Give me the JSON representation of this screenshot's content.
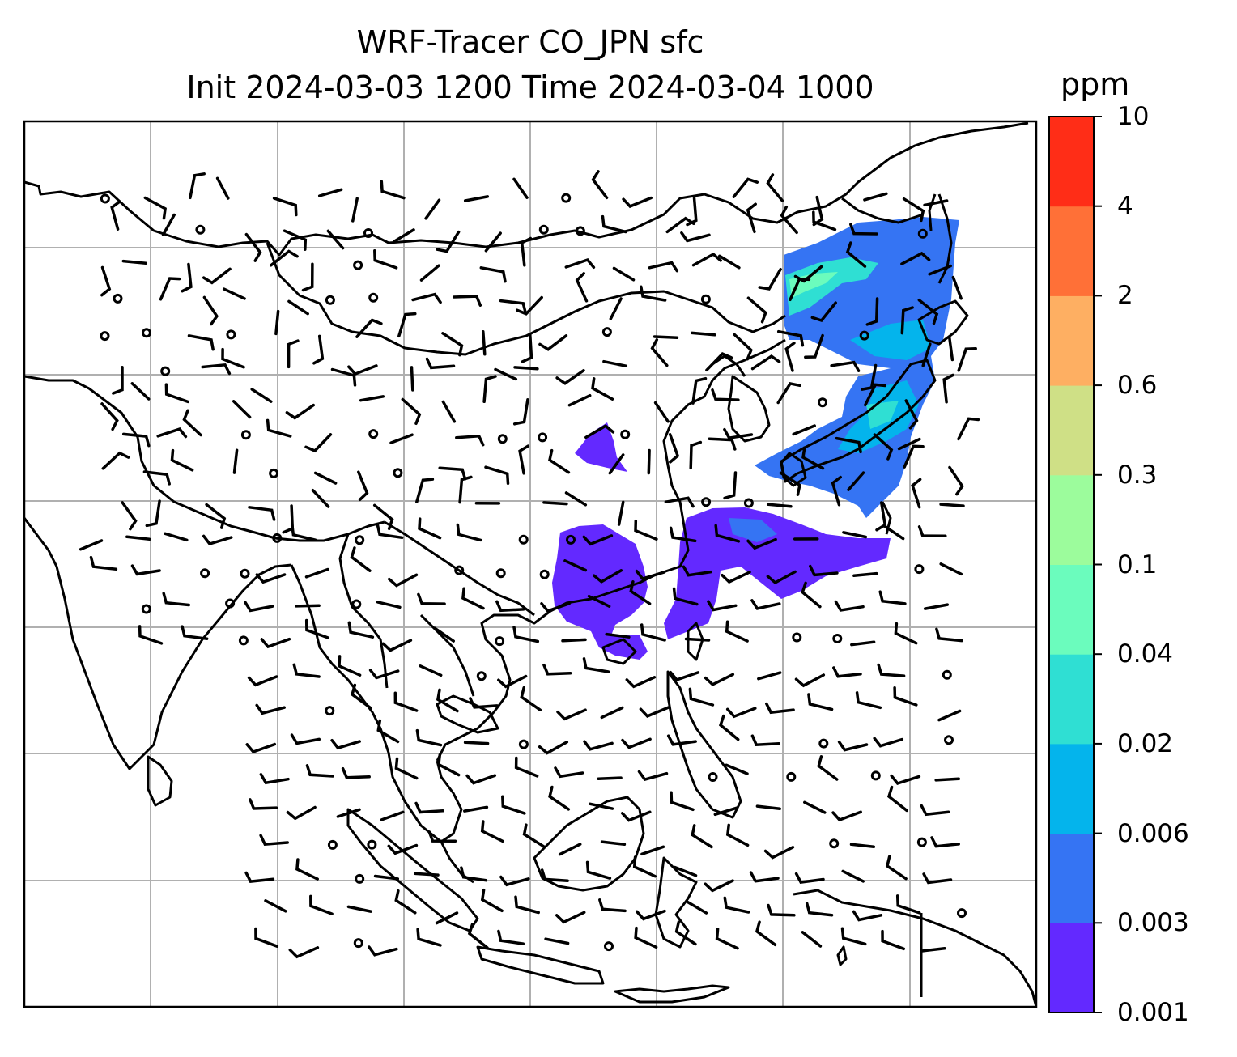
{
  "title": "WRF-Tracer CO_JPN sfc",
  "subtitle": "Init 2024-03-03 1200 Time 2024-03-04 1000",
  "colorbar": {
    "unit": "ppm",
    "levels": [
      "0.001",
      "0.003",
      "0.006",
      "0.02",
      "0.04",
      "0.1",
      "0.3",
      "0.6",
      "2",
      "4",
      "10"
    ],
    "colors": [
      "#6329ff",
      "#3574f3",
      "#04b4ec",
      "#2fdfd3",
      "#6bfcbd",
      "#9cfc9c",
      "#cfe086",
      "#feaf62",
      "#ff7037",
      "#ff2d17"
    ]
  },
  "colors": {
    "land_outline": "#000000",
    "gridline": "#b0b0b0",
    "background": "#ffffff"
  }
}
